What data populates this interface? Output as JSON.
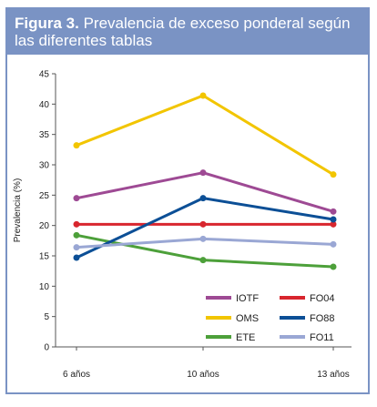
{
  "figure": {
    "number_label": "Figura 3.",
    "title": "Prevalencia de exceso ponderal según las diferentes tablas"
  },
  "chart_data": {
    "type": "line",
    "title": "Prevalencia de exceso ponderal según las diferentes tablas",
    "xlabel": "",
    "ylabel": "Prevalencia (%)",
    "categories": [
      "6 años",
      "10 años",
      "13 años"
    ],
    "ylim": [
      0,
      45
    ],
    "yticks": [
      0,
      5,
      10,
      15,
      20,
      25,
      30,
      35,
      40,
      45
    ],
    "grid": false,
    "legend_position": "bottom-right",
    "series": [
      {
        "name": "IOTF",
        "color": "#9e4a94",
        "values": [
          24.5,
          28.7,
          22.3
        ]
      },
      {
        "name": "OMS",
        "color": "#f2c500",
        "values": [
          33.2,
          41.4,
          28.4
        ]
      },
      {
        "name": "ETE",
        "color": "#4da03a",
        "values": [
          18.4,
          14.3,
          13.2
        ]
      },
      {
        "name": "FO04",
        "color": "#d8262e",
        "values": [
          20.2,
          20.2,
          20.2
        ]
      },
      {
        "name": "FO88",
        "color": "#0c4f96",
        "values": [
          14.7,
          24.5,
          21.0
        ]
      },
      {
        "name": "FO11",
        "color": "#9aa7d4",
        "values": [
          16.4,
          17.8,
          16.9
        ]
      }
    ]
  }
}
